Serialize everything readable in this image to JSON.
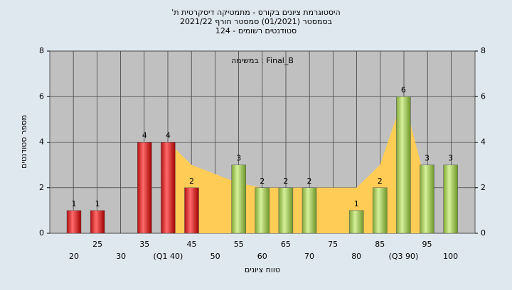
{
  "chart_data": {
    "type": "bar",
    "title": "'היסטוגרמת ציונים בקורס - מתמטיקה דיסקרטית ת",
    "subtitle": "בסמסטר  (01/2021)  סמסטר חורף 2021/22",
    "note": "סטודנטים רשומים - 124",
    "annotation": "במשימה : Final_B",
    "x_label": "טווח ציונים",
    "y_label": "מספר סטודנטים",
    "categories": [
      "20",
      "25",
      "30",
      "35",
      "(Q1 40)",
      "45",
      "50",
      "55",
      "60",
      "65",
      "70",
      "75",
      "80",
      "85",
      "(Q3 90)",
      "95",
      "100"
    ],
    "values": [
      1,
      1,
      0,
      4,
      4,
      2,
      0,
      3,
      2,
      2,
      2,
      0,
      1,
      2,
      6,
      3,
      3
    ],
    "colors": [
      "red",
      "red",
      "red",
      "red",
      "red",
      "red",
      "red",
      "green",
      "green",
      "green",
      "green",
      "green",
      "green",
      "green",
      "green",
      "green",
      "green"
    ],
    "trend": {
      "color": "#ffcc55",
      "values": [
        null,
        null,
        null,
        null,
        4,
        3,
        2.6,
        2.2,
        2,
        2,
        2,
        2,
        2,
        3,
        6,
        2,
        null
      ]
    },
    "ylim": [
      0,
      8
    ],
    "yticks": [
      0,
      2,
      4,
      6,
      8
    ],
    "y2lim": [
      0,
      8
    ],
    "y2ticks": [
      0,
      2,
      4,
      6,
      8
    ],
    "grid": true
  }
}
